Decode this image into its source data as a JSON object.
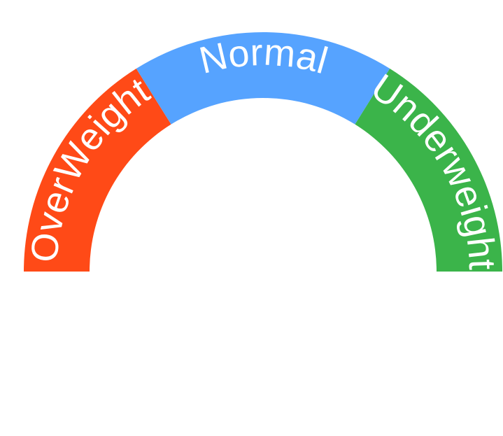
{
  "gauge": {
    "segments": [
      {
        "key": "overweight",
        "label": "OverWeight",
        "color": "#FF4A17"
      },
      {
        "key": "normal",
        "label": "Normal",
        "color": "#56A3FF"
      },
      {
        "key": "underweight",
        "label": "Underweight",
        "color": "#3BB44A"
      }
    ],
    "text_color": "#FFFFFF"
  }
}
